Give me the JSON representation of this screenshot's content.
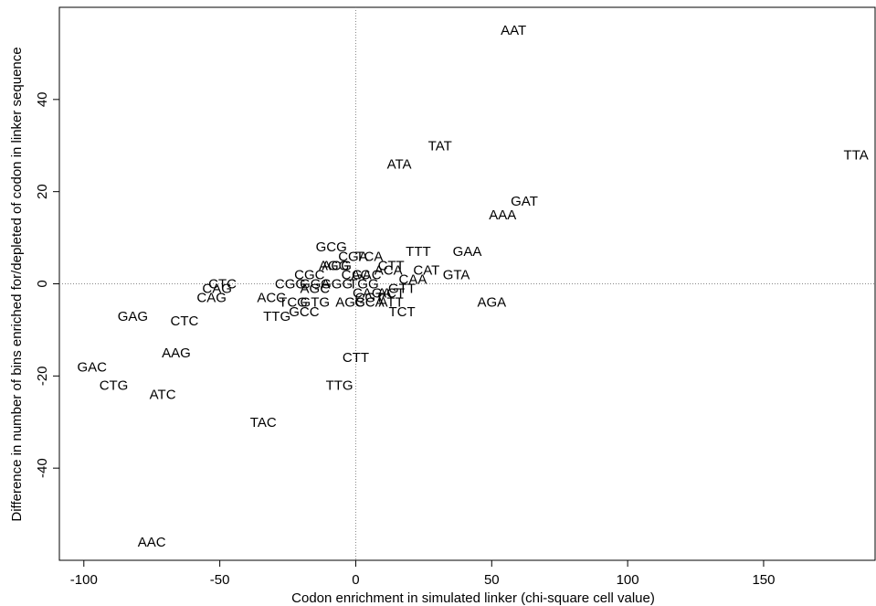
{
  "chart_data": {
    "type": "scatter",
    "xlabel": "Codon enrichment in simulated linker (chi-square cell value)",
    "ylabel": "Difference in number of bins enriched for/depleted of codon in linker sequence",
    "xlim": [
      -109,
      191
    ],
    "ylim": [
      -60,
      60
    ],
    "xticks": [
      -100,
      -50,
      0,
      50,
      100,
      150
    ],
    "yticks": [
      -40,
      -20,
      0,
      20,
      40
    ],
    "reference_lines": {
      "x": 0,
      "y": 0,
      "style": "dotted"
    },
    "points": [
      {
        "label": "AAT",
        "x": 58,
        "y": 55
      },
      {
        "label": "TAT",
        "x": 31,
        "y": 30
      },
      {
        "label": "ATA",
        "x": 16,
        "y": 26
      },
      {
        "label": "TTA",
        "x": 184,
        "y": 28
      },
      {
        "label": "GAT",
        "x": 62,
        "y": 18
      },
      {
        "label": "AAA",
        "x": 54,
        "y": 15
      },
      {
        "label": "GCG",
        "x": -9,
        "y": 8
      },
      {
        "label": "TCA",
        "x": 5,
        "y": 6
      },
      {
        "label": "TTT",
        "x": 23,
        "y": 7
      },
      {
        "label": "GAA",
        "x": 41,
        "y": 7
      },
      {
        "label": "CGA",
        "x": -1,
        "y": 6
      },
      {
        "label": "AGG",
        "x": -8,
        "y": 4
      },
      {
        "label": "ACG",
        "x": -7,
        "y": 4
      },
      {
        "label": "CTT",
        "x": 13,
        "y": 4
      },
      {
        "label": "ACA",
        "x": 12,
        "y": 3
      },
      {
        "label": "CAT",
        "x": 26,
        "y": 3
      },
      {
        "label": "GTA",
        "x": 37,
        "y": 2
      },
      {
        "label": "CGC",
        "x": -17,
        "y": 2
      },
      {
        "label": "CAC",
        "x": 0,
        "y": 2
      },
      {
        "label": "GAC",
        "x": 4,
        "y": 2
      },
      {
        "label": "CAA",
        "x": 21,
        "y": 1
      },
      {
        "label": "CTC",
        "x": -49,
        "y": 0
      },
      {
        "label": "CGG",
        "x": -24,
        "y": 0
      },
      {
        "label": "GGA",
        "x": -15,
        "y": 0
      },
      {
        "label": "GGG",
        "x": -7,
        "y": 0
      },
      {
        "label": "TGG",
        "x": 3,
        "y": 0
      },
      {
        "label": "CAG",
        "x": -51,
        "y": -1
      },
      {
        "label": "AGC",
        "x": -15,
        "y": -1
      },
      {
        "label": "GTT",
        "x": 17,
        "y": -1
      },
      {
        "label": "ACT",
        "x": 13,
        "y": -2
      },
      {
        "label": "CGT",
        "x": 5,
        "y": -3
      },
      {
        "label": "CAGA",
        "x": 6,
        "y": -2
      },
      {
        "label": "CAG",
        "x": -53,
        "y": -3
      },
      {
        "label": "ACC",
        "x": -31,
        "y": -3
      },
      {
        "label": "TCG",
        "x": -23,
        "y": -4
      },
      {
        "label": "GTG",
        "x": -15,
        "y": -4
      },
      {
        "label": "AGC",
        "x": -2,
        "y": -4
      },
      {
        "label": "GCA",
        "x": 5,
        "y": -4
      },
      {
        "label": "ATT",
        "x": 13,
        "y": -4
      },
      {
        "label": "AGA",
        "x": 50,
        "y": -4
      },
      {
        "label": "GCC",
        "x": -19,
        "y": -6
      },
      {
        "label": "TTG",
        "x": -29,
        "y": -7
      },
      {
        "label": "TCT",
        "x": 17,
        "y": -6
      },
      {
        "label": "GAG",
        "x": -82,
        "y": -7
      },
      {
        "label": "CTC",
        "x": -63,
        "y": -8
      },
      {
        "label": "AAG",
        "x": -66,
        "y": -15
      },
      {
        "label": "CTT",
        "x": 0,
        "y": -16
      },
      {
        "label": "GAC",
        "x": -97,
        "y": -18
      },
      {
        "label": "CTG",
        "x": -89,
        "y": -22
      },
      {
        "label": "TTG",
        "x": -6,
        "y": -22
      },
      {
        "label": "ATC",
        "x": -71,
        "y": -24
      },
      {
        "label": "TAC",
        "x": -34,
        "y": -30
      },
      {
        "label": "AAC",
        "x": -75,
        "y": -56
      }
    ]
  }
}
